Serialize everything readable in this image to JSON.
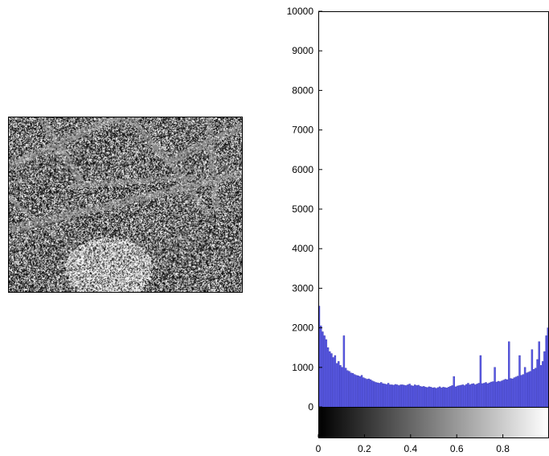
{
  "image": {
    "name": "texture-image",
    "description_colors": {
      "dark": "#151515",
      "mid": "#8a8a8a",
      "light": "#f2f2f2"
    }
  },
  "chart_data": {
    "type": "bar",
    "title": "",
    "xlabel": "",
    "ylabel": "",
    "xlim": [
      0,
      1
    ],
    "ylim": [
      0,
      10000
    ],
    "yticks": [
      0,
      1000,
      2000,
      3000,
      4000,
      5000,
      6000,
      7000,
      8000,
      9000,
      10000
    ],
    "ytick_labels": [
      "0",
      "1000",
      "2000",
      "3000",
      "4000",
      "5000",
      "6000",
      "7000",
      "8000",
      "9000",
      "10000"
    ],
    "xticks": [
      0,
      0.2,
      0.4,
      0.6,
      0.8
    ],
    "xtick_labels": [
      "0",
      "0.2",
      "0.4",
      "0.6",
      "0.8"
    ],
    "bar_color": "#5a5ae6",
    "bar_edge_color": "#3333aa",
    "colorbar": "grayscale",
    "grid": false,
    "bins": 128,
    "values": [
      2550,
      2050,
      1900,
      1800,
      1700,
      1500,
      1400,
      1350,
      1250,
      1300,
      1100,
      1150,
      1050,
      1000,
      1800,
      980,
      920,
      900,
      860,
      850,
      820,
      800,
      790,
      770,
      800,
      740,
      720,
      700,
      710,
      690,
      660,
      640,
      620,
      610,
      600,
      620,
      590,
      580,
      570,
      600,
      560,
      560,
      550,
      570,
      560,
      540,
      560,
      560,
      550,
      540,
      560,
      580,
      540,
      530,
      560,
      540,
      550,
      520,
      510,
      520,
      500,
      490,
      510,
      500,
      480,
      490,
      470,
      490,
      510,
      480,
      500,
      490,
      480,
      500,
      520,
      540,
      770,
      510,
      530,
      540,
      550,
      560,
      540,
      570,
      600,
      560,
      580,
      590,
      560,
      580,
      600,
      1300,
      590,
      600,
      620,
      590,
      610,
      630,
      640,
      1000,
      630,
      650,
      640,
      660,
      680,
      700,
      690,
      1650,
      720,
      710,
      740,
      760,
      780,
      1300,
      800,
      820,
      1000,
      860,
      880,
      900,
      1450,
      950,
      980,
      1200,
      1650,
      1050,
      1150,
      1400,
      1800,
      2000
    ]
  }
}
